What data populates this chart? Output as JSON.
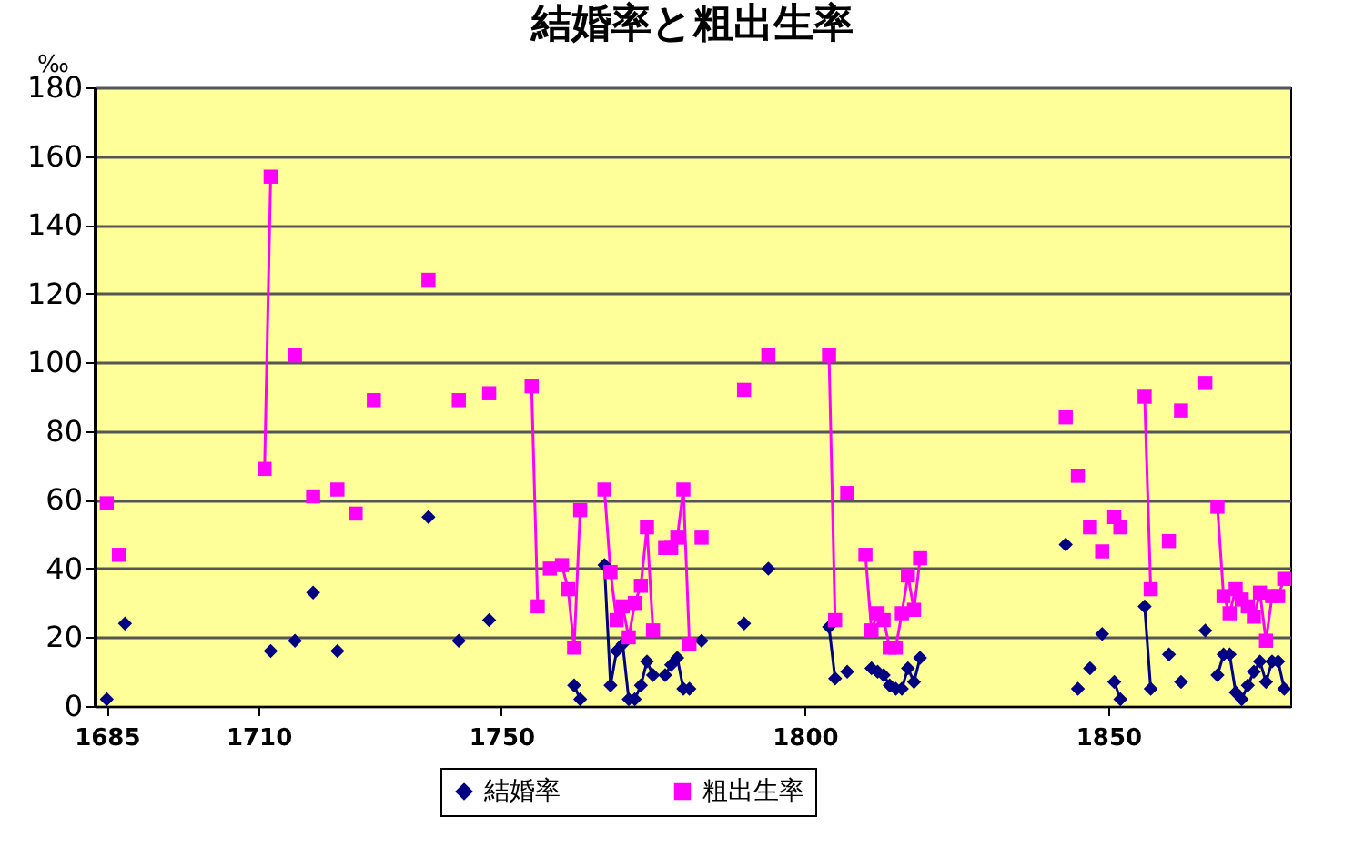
{
  "chart_data": {
    "type": "line",
    "title": "結婚率と粗出生率",
    "ylabel": "‰",
    "xlim": [
      1683,
      1880
    ],
    "xticks": [
      1685,
      1710,
      1750,
      1800,
      1850
    ],
    "ylim": [
      0,
      180
    ],
    "yticks": [
      0,
      20,
      40,
      60,
      80,
      100,
      120,
      140,
      160,
      180
    ],
    "grid": "y",
    "legend": "bottom",
    "line_style": "solid",
    "series": [
      {
        "name": "結婚率",
        "color": "#000080",
        "marker": "diamond",
        "x": [
          1685,
          1686,
          1688,
          1689,
          1712,
          1713,
          1716,
          1717,
          1719,
          1720,
          1723,
          1724,
          1738,
          1739,
          1743,
          1744,
          1748,
          1749,
          1762,
          1763,
          1764,
          1767,
          1768,
          1769,
          1770,
          1771,
          1772,
          1773,
          1774,
          1775,
          1776,
          1777,
          1778,
          1779,
          1780,
          1781,
          1782,
          1783,
          1784,
          1790,
          1791,
          1794,
          1795,
          1804,
          1805,
          1806,
          1807,
          1808,
          1811,
          1812,
          1813,
          1814,
          1815,
          1816,
          1817,
          1818,
          1819,
          1820,
          1843,
          1844,
          1845,
          1846,
          1847,
          1848,
          1849,
          1850,
          1851,
          1852,
          1853,
          1856,
          1857,
          1858,
          1860,
          1861,
          1862,
          1863,
          1866,
          1867,
          1868,
          1869,
          1870,
          1871,
          1872,
          1873,
          1874,
          1875,
          1876,
          1877,
          1878,
          1879
        ],
        "values": [
          2,
          null,
          24,
          null,
          16,
          null,
          19,
          null,
          33,
          null,
          16,
          null,
          55,
          null,
          19,
          null,
          25,
          null,
          6,
          2,
          null,
          41,
          6,
          16,
          18,
          2,
          2,
          6,
          13,
          9,
          null,
          9,
          12,
          14,
          5,
          5,
          null,
          19,
          null,
          24,
          null,
          40,
          null,
          23,
          8,
          null,
          10,
          null,
          11,
          10,
          9,
          6,
          5,
          5,
          11,
          7,
          14,
          null,
          47,
          null,
          5,
          null,
          11,
          null,
          21,
          null,
          7,
          2,
          null,
          29,
          5,
          null,
          15,
          null,
          7,
          null,
          22,
          null,
          9,
          15,
          15,
          4,
          2,
          6,
          10,
          13,
          7,
          13,
          13,
          5
        ]
      },
      {
        "name": "粗出生率",
        "color": "#ff00ff",
        "marker": "square",
        "x": [
          1685,
          1686,
          1687,
          1688,
          1711,
          1712,
          1713,
          1716,
          1717,
          1719,
          1720,
          1723,
          1724,
          1726,
          1727,
          1729,
          1730,
          1738,
          1739,
          1743,
          1744,
          1748,
          1749,
          1755,
          1756,
          1757,
          1758,
          1759,
          1760,
          1761,
          1762,
          1763,
          1764,
          1767,
          1768,
          1769,
          1770,
          1771,
          1772,
          1773,
          1774,
          1775,
          1776,
          1777,
          1778,
          1779,
          1780,
          1781,
          1782,
          1783,
          1784,
          1790,
          1791,
          1794,
          1795,
          1804,
          1805,
          1806,
          1807,
          1808,
          1810,
          1811,
          1812,
          1813,
          1814,
          1815,
          1816,
          1817,
          1818,
          1819,
          1820,
          1843,
          1844,
          1845,
          1846,
          1847,
          1848,
          1849,
          1850,
          1851,
          1852,
          1853,
          1856,
          1857,
          1858,
          1860,
          1861,
          1862,
          1863,
          1866,
          1867,
          1868,
          1869,
          1870,
          1871,
          1872,
          1873,
          1874,
          1875,
          1876,
          1877,
          1878,
          1879
        ],
        "values": [
          59,
          null,
          44,
          null,
          69,
          154,
          null,
          102,
          null,
          61,
          null,
          63,
          null,
          56,
          null,
          89,
          null,
          124,
          null,
          89,
          null,
          91,
          null,
          93,
          29,
          null,
          40,
          null,
          41,
          34,
          17,
          57,
          null,
          63,
          39,
          25,
          29,
          20,
          30,
          35,
          52,
          22,
          null,
          46,
          46,
          49,
          63,
          18,
          null,
          49,
          null,
          92,
          null,
          102,
          null,
          102,
          25,
          null,
          62,
          null,
          44,
          22,
          27,
          25,
          17,
          17,
          27,
          38,
          28,
          43,
          null,
          84,
          null,
          67,
          null,
          52,
          null,
          45,
          null,
          55,
          52,
          null,
          90,
          34,
          null,
          48,
          null,
          86,
          null,
          94,
          null,
          58,
          32,
          27,
          34,
          31,
          29,
          26,
          33,
          19,
          32,
          32,
          37
        ]
      }
    ]
  }
}
